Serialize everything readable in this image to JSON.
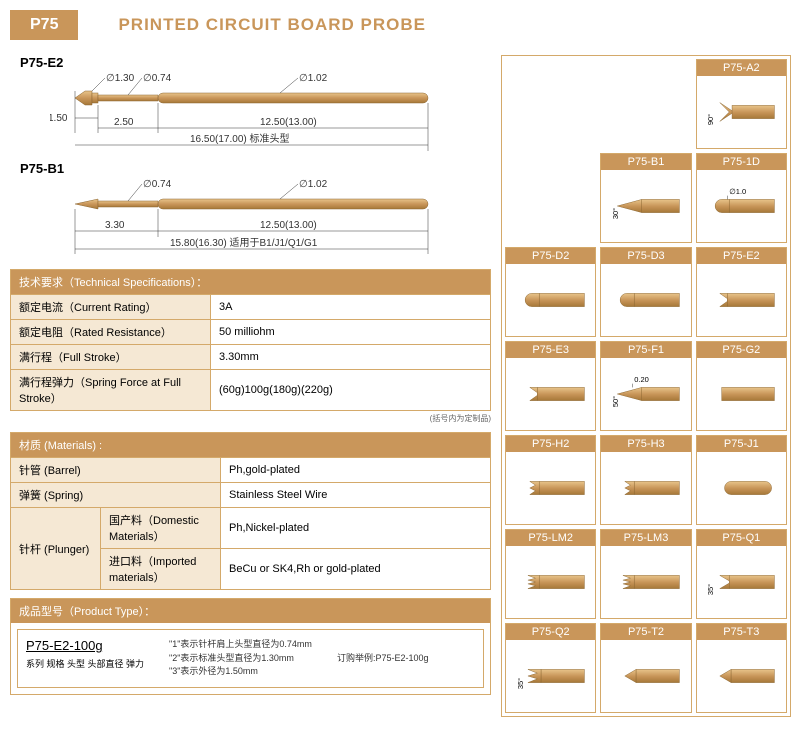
{
  "header": {
    "badge": "P75",
    "title": "PRINTED CIRCUIT BOARD  PROBE"
  },
  "diagrams": [
    {
      "label": "P75-E2",
      "dims": {
        "tip_dia": "∅1.30",
        "shaft_dia": "∅0.74",
        "body_dia": "∅1.02",
        "tip_len": "1.50",
        "neck": "2.50",
        "body": "12.50(13.00)",
        "total": "16.50(17.00) 标准头型"
      }
    },
    {
      "label": "P75-B1",
      "dims": {
        "shaft_dia": "∅0.74",
        "body_dia": "∅1.02",
        "neck": "3.30",
        "body": "12.50(13.00)",
        "total": "15.80(16.30) 适用于B1/J1/Q1/G1"
      }
    }
  ],
  "specs": {
    "sec1": {
      "header": "技术要求（Technical Specifications）：",
      "rows": [
        [
          "额定电流（Current Rating）",
          "3A"
        ],
        [
          "额定电阻（Rated Resistance）",
          "50 milliohm"
        ],
        [
          "满行程（Full Stroke）",
          "3.30mm"
        ],
        [
          "满行程弹力（Spring Force at Full Stroke）",
          "(60g)100g(180g)(220g)"
        ]
      ]
    },
    "sec2": {
      "header": "材质 (Materials) :",
      "rows": [
        [
          "针管 (Barrel)",
          "",
          "Ph,gold-plated"
        ],
        [
          "弹簧 (Spring)",
          "",
          "Stainless Steel Wire"
        ],
        [
          "针杆 (Plunger)",
          "国产料（Domestic Materials）",
          "Ph,Nickel-plated"
        ],
        [
          "",
          "进口料（Imported materials）",
          "BeCu or SK4,Rh or gold-plated"
        ]
      ]
    },
    "note": "(括号内为定制品)"
  },
  "product": {
    "header": "成品型号（Product Type）：",
    "code": "P75-E2-100g",
    "sublabels": "系列 规格 头型 头部直径  弹力",
    "notes": [
      "\"1\"表示针杆肩上头型直径为0.74mm",
      "\"2\"表示标准头型直径为1.30mm",
      "\"3\"表示外径为1.50mm"
    ],
    "order": "订购举例:P75-E2-100g"
  },
  "tips": [
    {
      "label": "",
      "blank": true
    },
    {
      "label": "",
      "blank": true
    },
    {
      "label": "P75-A2",
      "shape": "vee",
      "angle": "90°"
    },
    {
      "label": "",
      "blank": true
    },
    {
      "label": "P75-B1",
      "shape": "cone",
      "angle": "30°"
    },
    {
      "label": "P75-1D",
      "shape": "dome",
      "dim": "∅1.0"
    },
    {
      "label": "P75-D2",
      "shape": "dome"
    },
    {
      "label": "P75-D3",
      "shape": "dome"
    },
    {
      "label": "P75-E2",
      "shape": "cup"
    },
    {
      "label": "P75-E3",
      "shape": "cup"
    },
    {
      "label": "P75-F1",
      "shape": "cone",
      "angle": "50°",
      "dim": "0.20"
    },
    {
      "label": "P75-G2",
      "shape": "flat"
    },
    {
      "label": "P75-H2",
      "shape": "serrated"
    },
    {
      "label": "P75-H3",
      "shape": "serrated"
    },
    {
      "label": "P75-J1",
      "shape": "round"
    },
    {
      "label": "P75-LM2",
      "shape": "crown"
    },
    {
      "label": "P75-LM3",
      "shape": "crown"
    },
    {
      "label": "P75-Q1",
      "shape": "cup2",
      "angle": "35°"
    },
    {
      "label": "P75-Q2",
      "shape": "crown2",
      "angle": "35°"
    },
    {
      "label": "P75-T2",
      "shape": "chisel"
    },
    {
      "label": "P75-T3",
      "shape": "chisel"
    }
  ],
  "colors": {
    "gold": "#c9965a",
    "goldlight": "#e3b878",
    "golddark": "#b8843f",
    "cream": "#f5e8d4"
  }
}
